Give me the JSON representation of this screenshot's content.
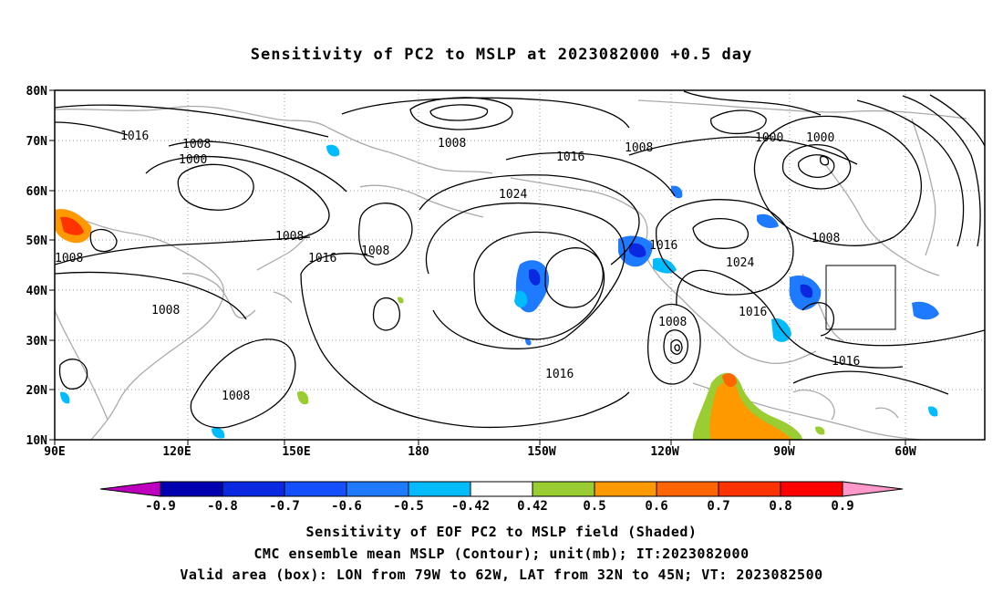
{
  "title": "Sensitivity of PC2 to MSLP at 2023082000 +0.5 day",
  "map": {
    "lat_labels": [
      "80N",
      "70N",
      "60N",
      "50N",
      "40N",
      "30N",
      "20N",
      "10N"
    ],
    "lon_labels": [
      "90E",
      "120E",
      "150E",
      "180",
      "150W",
      "120W",
      "90W",
      "60W"
    ],
    "lat_range": [
      10,
      80
    ],
    "lon_range_east": [
      90,
      300
    ],
    "contour_labels": [
      "1016",
      "1008",
      "1000",
      "1008",
      "1024",
      "1016",
      "1008",
      "1000",
      "1000",
      "1008",
      "1016",
      "1008",
      "1016",
      "1024",
      "1008",
      "1008",
      "1016",
      "1016",
      "1008",
      "1016",
      "1008",
      "1008"
    ],
    "valid_box": {
      "lon": [
        -79,
        -62
      ],
      "lat": [
        32,
        45
      ]
    }
  },
  "colorbar": {
    "labels": [
      "-0.9",
      "-0.8",
      "-0.7",
      "-0.6",
      "-0.5",
      "-0.42",
      "0.42",
      "0.5",
      "0.6",
      "0.7",
      "0.8",
      "0.9"
    ],
    "colors": [
      "#c000c0",
      "#0000b0",
      "#0a28e0",
      "#1450ff",
      "#1e7aff",
      "#00bcff",
      "#ffffff",
      "#9acd32",
      "#ff9900",
      "#ff6600",
      "#ff3300",
      "#ff0000",
      "#ff99cc"
    ]
  },
  "captions": {
    "line1": "Sensitivity of EOF PC2 to MSLP field (Shaded)",
    "line2": "CMC ensemble mean MSLP (Contour); unit(mb); IT:2023082000",
    "line3": "Valid area (box): LON from 79W to 62W, LAT from 32N to 45N; VT: 2023082500"
  }
}
